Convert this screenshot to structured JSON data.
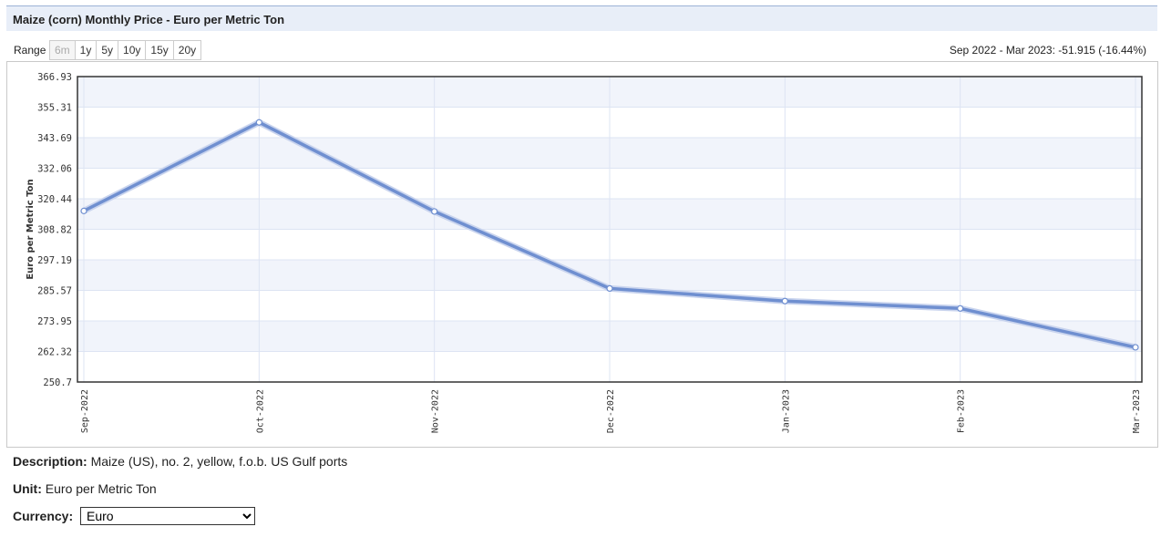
{
  "header": {
    "title": "Maize (corn) Monthly Price - Euro per Metric Ton"
  },
  "range": {
    "label": "Range",
    "buttons": [
      "6m",
      "1y",
      "5y",
      "10y",
      "15y",
      "20y"
    ],
    "selected": "6m",
    "change_summary": "Sep 2022 - Mar 2023: -51.915 (-16.44%)"
  },
  "chart_data": {
    "type": "line",
    "ylabel": "Euro per Metric Ton",
    "xlabel": "",
    "categories": [
      "Sep-2022",
      "Oct-2022",
      "Nov-2022",
      "Dec-2022",
      "Jan-2023",
      "Feb-2023",
      "Mar-2023"
    ],
    "series": [
      {
        "values": [
          315.8,
          349.5,
          315.6,
          286.3,
          281.5,
          278.7,
          263.9
        ]
      }
    ],
    "yticks": [
      "366.93",
      "355.31",
      "343.69",
      "332.06",
      "320.44",
      "308.82",
      "297.19",
      "285.57",
      "273.95",
      "262.32",
      "250.7"
    ],
    "ylim": [
      250.7,
      366.93
    ],
    "grid": true,
    "colors": {
      "line": "#6f8fd0",
      "band": "#f1f4fb",
      "grid": "#dde4f3",
      "axis": "#333333"
    }
  },
  "details": {
    "description_label": "Description:",
    "description_value": "Maize (US), no. 2, yellow, f.o.b. US Gulf ports",
    "unit_label": "Unit:",
    "unit_value": "Euro per Metric Ton",
    "currency_label": "Currency:",
    "currency_value": "Euro"
  }
}
